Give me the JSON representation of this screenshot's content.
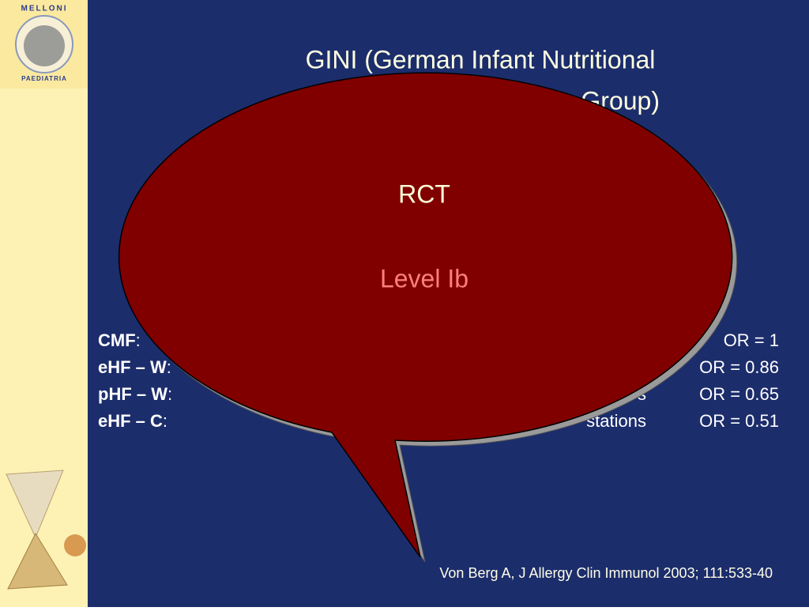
{
  "logo": {
    "top": "MELLONI",
    "bottom": "PAEDIATRIA"
  },
  "title": {
    "line1": "GINI (German Infant Nutritional",
    "line2": "Group)"
  },
  "callout": {
    "line1": "RCT",
    "line2": "Level Ib"
  },
  "rows": [
    {
      "label": "CMF",
      "sep": ":",
      "tail": "",
      "result": "OR = 1"
    },
    {
      "label": "eHF – W",
      "sep": ":",
      "tail": "",
      "result": "OR = 0.86"
    },
    {
      "label": "pHF – W",
      "sep": ":",
      "tail": "s",
      "result": "OR = 0.65"
    },
    {
      "label": "eHF – C",
      "sep": ":",
      "tail": "stations",
      "result": "OR = 0.51"
    }
  ],
  "citation": "Von Berg A, J Allergy Clin Immunol 2003; 111:533-40"
}
